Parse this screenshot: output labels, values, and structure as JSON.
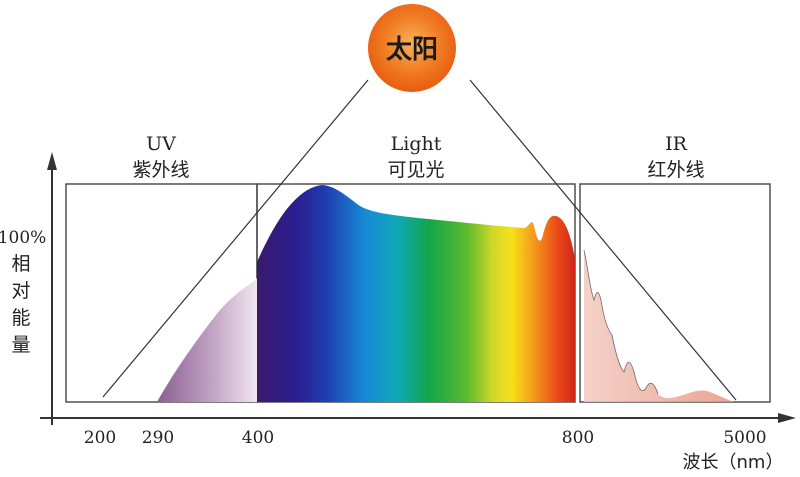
{
  "sun": {
    "label": "太阳"
  },
  "regions": {
    "uv": {
      "code": "UV",
      "name": "紫外线"
    },
    "light": {
      "code": "Light",
      "name": "可见光"
    },
    "ir": {
      "code": "IR",
      "name": "红外线"
    }
  },
  "y_axis": {
    "top": "100%",
    "chars": [
      "相",
      "对",
      "能",
      "量"
    ]
  },
  "x_axis": {
    "ticks": [
      "200",
      "290",
      "400",
      "800",
      "5000"
    ],
    "label": "波长（nm）"
  },
  "colors": {
    "sun_core": "#f26a1b",
    "sun_edge": "#f7a440",
    "uv_fill": "#b79ab9",
    "ir_fill": "#e8a59a"
  }
}
